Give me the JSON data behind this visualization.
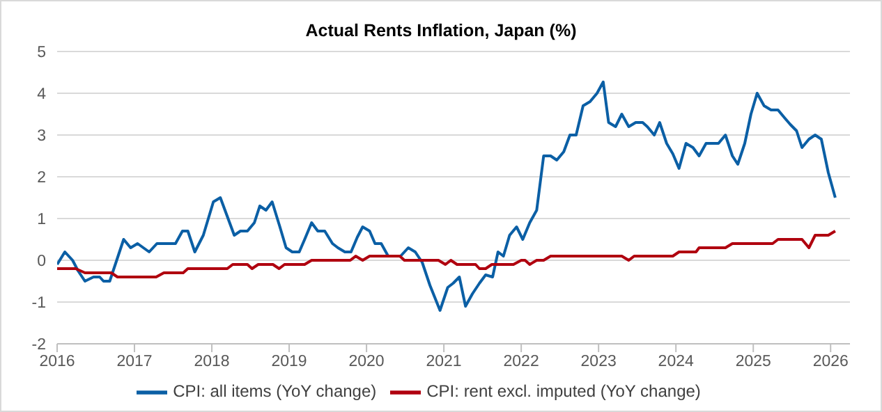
{
  "chart_data": {
    "type": "line",
    "title": "Actual Rents Inflation, Japan (%)",
    "xlim": [
      2016,
      2026.25
    ],
    "xticks": [
      2016,
      2017,
      2018,
      2019,
      2020,
      2021,
      2022,
      2023,
      2024,
      2025,
      2026
    ],
    "ylim": [
      -2,
      5
    ],
    "yticks": [
      -2,
      -1,
      0,
      1,
      2,
      3,
      4,
      5
    ],
    "grid": "y",
    "legend": "bottom",
    "marker": "none",
    "line_style": "solid",
    "series": [
      {
        "name": "CPI: all items (YoY change)",
        "color": "#0b5fa5",
        "x": [
          2016.0,
          2016.1,
          2016.2,
          2016.27,
          2016.36,
          2016.47,
          2016.55,
          2016.6,
          2016.68,
          2016.77,
          2016.86,
          2016.95,
          2017.04,
          2017.19,
          2017.29,
          2017.53,
          2017.62,
          2017.69,
          2017.78,
          2017.89,
          2018.02,
          2018.11,
          2018.29,
          2018.37,
          2018.46,
          2018.55,
          2018.62,
          2018.7,
          2018.78,
          2018.88,
          2018.96,
          2019.04,
          2019.13,
          2019.2,
          2019.29,
          2019.37,
          2019.46,
          2019.56,
          2019.63,
          2019.72,
          2019.8,
          2019.88,
          2019.95,
          2020.04,
          2020.11,
          2020.19,
          2020.28,
          2020.44,
          2020.54,
          2020.63,
          2020.72,
          2020.82,
          2020.95,
          2021.05,
          2021.12,
          2021.2,
          2021.28,
          2021.37,
          2021.46,
          2021.54,
          2021.63,
          2021.7,
          2021.77,
          2021.85,
          2021.94,
          2022.02,
          2022.11,
          2022.2,
          2022.29,
          2022.38,
          2022.46,
          2022.55,
          2022.63,
          2022.71,
          2022.8,
          2022.89,
          2022.98,
          2023.06,
          2023.13,
          2023.22,
          2023.3,
          2023.39,
          2023.48,
          2023.57,
          2023.63,
          2023.72,
          2023.79,
          2023.88,
          2023.96,
          2024.04,
          2024.13,
          2024.22,
          2024.3,
          2024.39,
          2024.55,
          2024.64,
          2024.73,
          2024.8,
          2024.89,
          2024.97,
          2025.05,
          2025.14,
          2025.23,
          2025.32,
          2025.41,
          2025.48,
          2025.56,
          2025.63,
          2025.72,
          2025.8,
          2025.88,
          2025.97,
          2026.06
        ],
        "values": [
          -0.1,
          0.2,
          0,
          -0.25,
          -0.5,
          -0.4,
          -0.4,
          -0.5,
          -0.5,
          0,
          0.5,
          0.3,
          0.4,
          0.2,
          0.4,
          0.4,
          0.7,
          0.7,
          0.2,
          0.6,
          1.4,
          1.5,
          0.6,
          0.7,
          0.7,
          0.9,
          1.3,
          1.2,
          1.4,
          0.8,
          0.3,
          0.2,
          0.2,
          0.5,
          0.9,
          0.7,
          0.7,
          0.4,
          0.3,
          0.2,
          0.2,
          0.55,
          0.8,
          0.7,
          0.4,
          0.4,
          0.1,
          0.1,
          0.3,
          0.2,
          -0.05,
          -0.6,
          -1.2,
          -0.65,
          -0.55,
          -0.4,
          -1.1,
          -0.8,
          -0.55,
          -0.35,
          -0.4,
          0.2,
          0.1,
          0.6,
          0.8,
          0.5,
          0.9,
          1.2,
          2.5,
          2.5,
          2.4,
          2.6,
          3.0,
          3.0,
          3.7,
          3.8,
          4.0,
          4.27,
          3.3,
          3.2,
          3.5,
          3.2,
          3.3,
          3.3,
          3.2,
          3.0,
          3.3,
          2.8,
          2.55,
          2.2,
          2.8,
          2.7,
          2.5,
          2.8,
          2.8,
          3.0,
          2.5,
          2.3,
          2.8,
          3.5,
          4.0,
          3.7,
          3.6,
          3.6,
          3.4,
          3.25,
          3.1,
          2.7,
          2.9,
          3.0,
          2.9,
          2.1,
          1.5
        ]
      },
      {
        "name": "CPI: rent excl. imputed (YoY change)",
        "color": "#b0000f",
        "x": [
          2016.0,
          2016.24,
          2016.36,
          2016.7,
          2016.78,
          2017.28,
          2017.38,
          2017.63,
          2017.69,
          2018.2,
          2018.27,
          2018.46,
          2018.52,
          2018.6,
          2018.79,
          2018.87,
          2018.94,
          2019.2,
          2019.29,
          2019.79,
          2019.86,
          2019.95,
          2020.04,
          2020.43,
          2020.49,
          2020.93,
          2021.02,
          2021.09,
          2021.17,
          2021.41,
          2021.46,
          2021.54,
          2021.62,
          2021.9,
          2022.0,
          2022.05,
          2022.11,
          2022.2,
          2022.29,
          2022.38,
          2023.3,
          2023.39,
          2023.46,
          2023.96,
          2024.04,
          2024.26,
          2024.3,
          2024.64,
          2024.73,
          2025.25,
          2025.32,
          2025.63,
          2025.72,
          2025.8,
          2025.97,
          2026.06
        ],
        "values": [
          -0.2,
          -0.2,
          -0.3,
          -0.3,
          -0.4,
          -0.4,
          -0.3,
          -0.3,
          -0.2,
          -0.2,
          -0.1,
          -0.1,
          -0.2,
          -0.1,
          -0.1,
          -0.2,
          -0.1,
          -0.1,
          0,
          0,
          0.1,
          0,
          0.1,
          0.1,
          0,
          0,
          -0.1,
          0,
          -0.1,
          -0.1,
          -0.2,
          -0.2,
          -0.1,
          -0.1,
          0,
          0,
          -0.1,
          0,
          0,
          0.1,
          0.1,
          0,
          0.1,
          0.1,
          0.2,
          0.2,
          0.3,
          0.3,
          0.4,
          0.4,
          0.5,
          0.5,
          0.3,
          0.6,
          0.6,
          0.7
        ]
      }
    ]
  }
}
